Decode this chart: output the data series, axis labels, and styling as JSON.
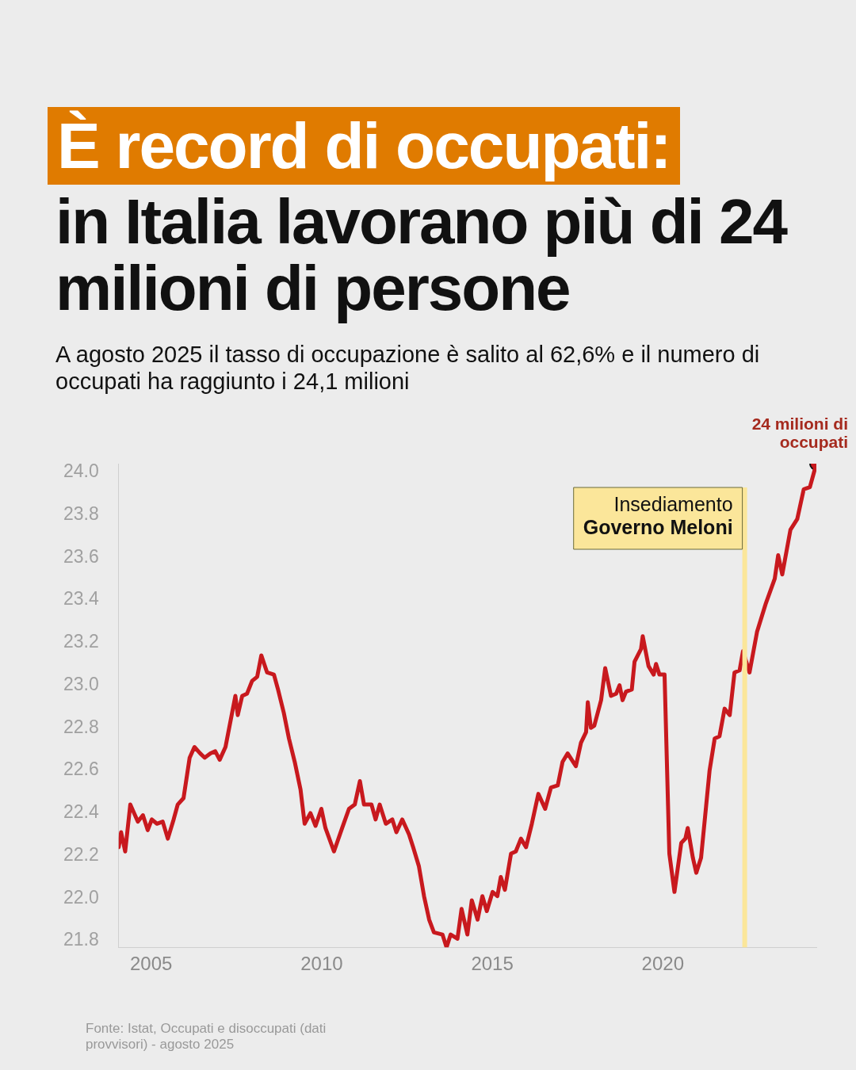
{
  "chart_data": {
    "type": "line",
    "title": "È record di occupati:",
    "subtitle": "in Italia lavorano più di 24 milioni di persone",
    "annotations": [
      "A agosto 2025 il tasso di occupazione è salito al 62,6% e il numero di occupati ha raggiunto i 24,1 milioni",
      "Fonte: Istat, Occupati e disoccupati (dati provvisori) - agosto 2025",
      {
        "text": "24 milioni di occupati",
        "x": 2024.5,
        "y": 24.04
      }
    ],
    "x": [
      2004.05,
      2004.12,
      2004.24,
      2004.39,
      2004.61,
      2004.76,
      2004.9,
      2005.02,
      2005.17,
      2005.34,
      2005.49,
      2005.66,
      2005.78,
      2005.95,
      2006.13,
      2006.27,
      2006.44,
      2006.57,
      2006.74,
      2006.88,
      2007.01,
      2007.18,
      2007.47,
      2007.54,
      2007.67,
      2007.81,
      2007.96,
      2008.11,
      2008.23,
      2008.4,
      2008.6,
      2008.72,
      2008.89,
      2009.04,
      2009.21,
      2009.38,
      2009.5,
      2009.67,
      2009.82,
      2009.99,
      2010.11,
      2010.36,
      2010.6,
      2010.8,
      2010.97,
      2011.12,
      2011.24,
      2011.46,
      2011.58,
      2011.7,
      2011.88,
      2012.07,
      2012.19,
      2012.36,
      2012.56,
      2012.68,
      2012.85,
      2013.0,
      2013.15,
      2013.29,
      2013.54,
      2013.66,
      2013.78,
      2013.98,
      2014.1,
      2014.27,
      2014.4,
      2014.57,
      2014.71,
      2014.84,
      2015.01,
      2015.15,
      2015.25,
      2015.37,
      2015.55,
      2015.69,
      2015.84,
      2015.99,
      2016.16,
      2016.35,
      2016.55,
      2016.72,
      2016.92,
      2017.06,
      2017.21,
      2017.45,
      2017.6,
      2017.75,
      2017.8,
      2017.89,
      2017.99,
      2018.19,
      2018.31,
      2018.48,
      2018.63,
      2018.73,
      2018.82,
      2018.92,
      2019.09,
      2019.17,
      2019.36,
      2019.41,
      2019.58,
      2019.73,
      2019.8,
      2019.9,
      2020.05,
      2020.19,
      2020.34,
      2020.54,
      2020.66,
      2020.73,
      2020.88,
      2020.98,
      2021.12,
      2021.37,
      2021.52,
      2021.66,
      2021.81,
      2021.96,
      2022.1,
      2022.25,
      2022.35,
      2022.54,
      2022.76,
      2023.01,
      2023.28,
      2023.38,
      2023.5,
      2023.74,
      2023.94,
      2024.13,
      2024.31,
      2024.5
    ],
    "series": [
      {
        "color": "#c8191e",
        "values": [
          22.24,
          22.31,
          22.22,
          22.44,
          22.36,
          22.39,
          22.32,
          22.37,
          22.35,
          22.36,
          22.28,
          22.37,
          22.44,
          22.47,
          22.66,
          22.71,
          22.68,
          22.66,
          22.68,
          22.69,
          22.65,
          22.71,
          22.95,
          22.86,
          22.95,
          22.96,
          23.02,
          23.04,
          23.14,
          23.06,
          23.05,
          22.98,
          22.87,
          22.75,
          22.64,
          22.51,
          22.35,
          22.4,
          22.34,
          22.42,
          22.33,
          22.22,
          22.33,
          22.42,
          22.44,
          22.55,
          22.44,
          22.44,
          22.37,
          22.44,
          22.35,
          22.37,
          22.31,
          22.37,
          22.3,
          22.24,
          22.15,
          22.01,
          21.9,
          21.84,
          21.83,
          21.77,
          21.83,
          21.81,
          21.95,
          21.83,
          21.99,
          21.9,
          22.01,
          21.94,
          22.03,
          22.01,
          22.1,
          22.04,
          22.21,
          22.22,
          22.28,
          22.24,
          22.35,
          22.49,
          22.42,
          22.52,
          22.53,
          22.64,
          22.68,
          22.62,
          22.73,
          22.78,
          22.92,
          22.8,
          22.81,
          22.93,
          23.08,
          22.95,
          22.96,
          23.0,
          22.93,
          22.97,
          22.98,
          23.11,
          23.17,
          23.23,
          23.09,
          23.05,
          23.1,
          23.05,
          23.05,
          22.21,
          22.03,
          22.26,
          22.28,
          22.33,
          22.19,
          22.12,
          22.19,
          22.6,
          22.75,
          22.76,
          22.89,
          22.86,
          23.06,
          23.07,
          23.16,
          23.06,
          23.25,
          23.38,
          23.5,
          23.61,
          23.52,
          23.73,
          23.78,
          23.92,
          23.93,
          24.04
        ]
      }
    ],
    "xlim": [
      2004.05,
      2024.5
    ],
    "xticks": [
      2005,
      2010,
      2015,
      2020
    ],
    "ylim": [
      21.77,
      24.04
    ],
    "yticks": [
      {
        "value": 21.8,
        "label": "21.8"
      },
      {
        "value": 22,
        "label": "22.0"
      },
      {
        "value": 22.2,
        "label": "22.2"
      },
      {
        "value": 22.4,
        "label": "22.4"
      },
      {
        "value": 22.6,
        "label": "22.6"
      },
      {
        "value": 22.8,
        "label": "22.8"
      },
      {
        "value": 23,
        "label": "23.0"
      },
      {
        "value": 23.2,
        "label": "23.2"
      },
      {
        "value": 23.4,
        "label": "23.4"
      },
      {
        "value": 23.6,
        "label": "23.6"
      },
      {
        "value": 23.8,
        "label": "23.8"
      },
      {
        "value": 24,
        "label": "24.0"
      }
    ],
    "ref_lines": [
      {
        "axis": "x",
        "value": 2022.4,
        "label": "Insediamento\nGoverno Meloni",
        "color": "#fbe69a"
      }
    ],
    "grid": false,
    "legend": false,
    "marker": "none",
    "line_style": "solid"
  }
}
